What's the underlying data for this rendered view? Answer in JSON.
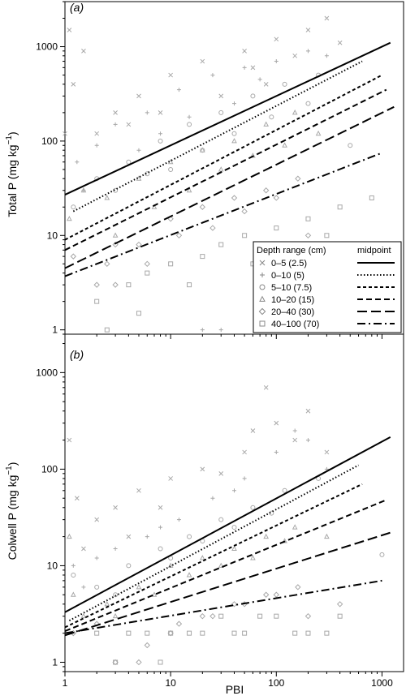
{
  "figure": {
    "xlabel": "PBI",
    "x_ticks": [
      "1",
      "10",
      "100",
      "1000"
    ],
    "y_ticks": [
      "1",
      "10",
      "100",
      "1000"
    ]
  },
  "legend": {
    "header_left": "Depth range (cm)",
    "header_right": "midpoint",
    "entries": [
      {
        "label": "0–5 (2.5)",
        "marker": "cross",
        "dash": "solid"
      },
      {
        "label": "0–10 (5)",
        "marker": "plus",
        "dash": "dotted"
      },
      {
        "label": "5–10 (7.5)",
        "marker": "circle",
        "dash": "short-dash"
      },
      {
        "label": "10–20 (15)",
        "marker": "triangle",
        "dash": "medium-dash"
      },
      {
        "label": "20–40 (30)",
        "marker": "diamond",
        "dash": "long-dash"
      },
      {
        "label": "40–100 (70)",
        "marker": "square",
        "dash": "dash-dot"
      }
    ]
  },
  "colors": {
    "points": "#a8a8a8",
    "lines": "#000000"
  },
  "chart_data": [
    {
      "type": "scatter",
      "panel_label": "(a)",
      "ylabel": "Total P (mg kg",
      "ylabel_superscript": "−1",
      "ylabel_close": ")",
      "xscale": "log",
      "yscale": "log",
      "xlim": [
        1,
        1600
      ],
      "ylim": [
        0.9,
        3000
      ],
      "legend_position": "lower-right",
      "points_color": "#a8a8a8",
      "series": [
        {
          "name": "0–5 (2.5)",
          "marker": "cross",
          "dash": "solid",
          "fit_x": [
            1,
            1200
          ],
          "fit_y": [
            27,
            1100
          ],
          "points": [
            [
              1.1,
              1500
            ],
            [
              1.2,
              400
            ],
            [
              2,
              120
            ],
            [
              3,
              200
            ],
            [
              5,
              300
            ],
            [
              10,
              500
            ],
            [
              20,
              700
            ],
            [
              50,
              900
            ],
            [
              100,
              1200
            ],
            [
              200,
              1500
            ],
            [
              300,
              2000
            ],
            [
              150,
              800
            ],
            [
              80,
              400
            ],
            [
              30,
              300
            ],
            [
              8,
              200
            ],
            [
              1,
              120
            ],
            [
              1.5,
              900
            ],
            [
              4,
              150
            ],
            [
              60,
              600
            ],
            [
              400,
              1100
            ]
          ]
        },
        {
          "name": "0–10 (5)",
          "marker": "plus",
          "dash": "dotted",
          "fit_x": [
            1.2,
            650
          ],
          "fit_y": [
            18,
            700
          ],
          "points": [
            [
              1.3,
              60
            ],
            [
              2,
              90
            ],
            [
              3,
              150
            ],
            [
              6,
              200
            ],
            [
              12,
              350
            ],
            [
              25,
              500
            ],
            [
              50,
              600
            ],
            [
              100,
              700
            ],
            [
              200,
              900
            ],
            [
              20,
              1.0
            ],
            [
              30,
              1.0
            ],
            [
              1.5,
              30
            ],
            [
              8,
              120
            ],
            [
              40,
              250
            ],
            [
              300,
              800
            ],
            [
              15,
              180
            ],
            [
              5,
              80
            ],
            [
              70,
              450
            ]
          ]
        },
        {
          "name": "5–10 (7.5)",
          "marker": "circle",
          "dash": "short-dash",
          "fit_x": [
            1,
            1000
          ],
          "fit_y": [
            9,
            500
          ],
          "points": [
            [
              1.2,
              20
            ],
            [
              2,
              40
            ],
            [
              4,
              60
            ],
            [
              8,
              100
            ],
            [
              15,
              150
            ],
            [
              30,
              200
            ],
            [
              60,
              300
            ],
            [
              120,
              400
            ],
            [
              250,
              500
            ],
            [
              10,
              50
            ],
            [
              20,
              80
            ],
            [
              3,
              30
            ],
            [
              40,
              120
            ],
            [
              90,
              180
            ],
            [
              200,
              250
            ],
            [
              500,
              90
            ],
            [
              6,
              45
            ]
          ]
        },
        {
          "name": "10–20 (15)",
          "marker": "triangle",
          "dash": "medium-dash",
          "fit_x": [
            1,
            1100
          ],
          "fit_y": [
            7,
            350
          ],
          "points": [
            [
              1.1,
              15
            ],
            [
              2.5,
              25
            ],
            [
              5,
              40
            ],
            [
              10,
              60
            ],
            [
              20,
              80
            ],
            [
              40,
              100
            ],
            [
              80,
              150
            ],
            [
              150,
              200
            ],
            [
              3,
              10
            ],
            [
              7,
              20
            ],
            [
              15,
              30
            ],
            [
              30,
              50
            ],
            [
              60,
              70
            ],
            [
              120,
              90
            ],
            [
              250,
              120
            ],
            [
              1.5,
              30
            ]
          ]
        },
        {
          "name": "20–40 (30)",
          "marker": "diamond",
          "dash": "long-dash",
          "fit_x": [
            1,
            1300
          ],
          "fit_y": [
            4.5,
            230
          ],
          "points": [
            [
              1.2,
              6
            ],
            [
              2,
              3
            ],
            [
              3,
              3
            ],
            [
              5,
              8
            ],
            [
              10,
              15
            ],
            [
              20,
              20
            ],
            [
              40,
              25
            ],
            [
              80,
              30
            ],
            [
              160,
              40
            ],
            [
              3,
              8
            ],
            [
              6,
              5
            ],
            [
              12,
              10
            ],
            [
              25,
              12
            ],
            [
              50,
              18
            ],
            [
              100,
              25
            ],
            [
              200,
              10
            ],
            [
              400,
              6
            ],
            [
              2.5,
              5
            ]
          ]
        },
        {
          "name": "40–100 (70)",
          "marker": "square",
          "dash": "dash-dot",
          "fit_x": [
            1,
            1000
          ],
          "fit_y": [
            3.7,
            75
          ],
          "points": [
            [
              2,
              2
            ],
            [
              4,
              3
            ],
            [
              6,
              4
            ],
            [
              10,
              5
            ],
            [
              20,
              6
            ],
            [
              30,
              8
            ],
            [
              50,
              10
            ],
            [
              100,
              12
            ],
            [
              200,
              15
            ],
            [
              400,
              20
            ],
            [
              800,
              25
            ],
            [
              2.5,
              1.0
            ],
            [
              5,
              1.5
            ],
            [
              15,
              3
            ],
            [
              60,
              5
            ],
            [
              150,
              6
            ],
            [
              300,
              10
            ],
            [
              600,
              8
            ]
          ]
        }
      ]
    },
    {
      "type": "scatter",
      "panel_label": "(b)",
      "ylabel": "Colwell P (mg kg",
      "ylabel_superscript": "−1",
      "ylabel_close": ")",
      "xscale": "log",
      "yscale": "log",
      "xlim": [
        1,
        1600
      ],
      "ylim": [
        0.8,
        2500
      ],
      "points_color": "#a8a8a8",
      "series": [
        {
          "name": "0–5 (2.5)",
          "marker": "cross",
          "dash": "solid",
          "fit_x": [
            1,
            1200
          ],
          "fit_y": [
            3.3,
            215
          ],
          "points": [
            [
              1.1,
              200
            ],
            [
              1.3,
              50
            ],
            [
              2,
              30
            ],
            [
              3,
              40
            ],
            [
              5,
              60
            ],
            [
              10,
              80
            ],
            [
              20,
              100
            ],
            [
              50,
              150
            ],
            [
              100,
              300
            ],
            [
              200,
              400
            ],
            [
              80,
              700
            ],
            [
              150,
              200
            ],
            [
              30,
              90
            ],
            [
              8,
              40
            ],
            [
              4,
              20
            ],
            [
              1.5,
              15
            ],
            [
              60,
              250
            ],
            [
              300,
              150
            ]
          ]
        },
        {
          "name": "0–10 (5)",
          "marker": "plus",
          "dash": "dotted",
          "fit_x": [
            1.1,
            600
          ],
          "fit_y": [
            2.7,
            110
          ],
          "points": [
            [
              1.2,
              10
            ],
            [
              2,
              12
            ],
            [
              3,
              15
            ],
            [
              6,
              20
            ],
            [
              12,
              30
            ],
            [
              25,
              50
            ],
            [
              50,
              80
            ],
            [
              100,
              150
            ],
            [
              200,
              200
            ],
            [
              300,
              100
            ],
            [
              1.5,
              6
            ],
            [
              8,
              25
            ],
            [
              40,
              60
            ],
            [
              150,
              250
            ]
          ]
        },
        {
          "name": "5–10 (7.5)",
          "marker": "circle",
          "dash": "short-dash",
          "fit_x": [
            1,
            650
          ],
          "fit_y": [
            2.3,
            70
          ],
          "points": [
            [
              1.2,
              8
            ],
            [
              2,
              6
            ],
            [
              4,
              10
            ],
            [
              8,
              15
            ],
            [
              15,
              20
            ],
            [
              30,
              30
            ],
            [
              60,
              40
            ],
            [
              120,
              60
            ],
            [
              250,
              80
            ],
            [
              1000,
              13
            ],
            [
              10,
              12
            ],
            [
              20,
              18
            ],
            [
              3,
              5
            ],
            [
              40,
              25
            ],
            [
              90,
              35
            ]
          ]
        },
        {
          "name": "10–20 (15)",
          "marker": "triangle",
          "dash": "medium-dash",
          "fit_x": [
            1,
            1100
          ],
          "fit_y": [
            2.1,
            48
          ],
          "points": [
            [
              1.1,
              20
            ],
            [
              1.2,
              5
            ],
            [
              2.5,
              4
            ],
            [
              5,
              6
            ],
            [
              10,
              10
            ],
            [
              20,
              12
            ],
            [
              40,
              15
            ],
            [
              80,
              20
            ],
            [
              150,
              25
            ],
            [
              300,
              20
            ],
            [
              3,
              3
            ],
            [
              7,
              5
            ],
            [
              15,
              8
            ],
            [
              30,
              10
            ],
            [
              60,
              12
            ],
            [
              120,
              18
            ],
            [
              1.5,
              3
            ]
          ]
        },
        {
          "name": "20–40 (30)",
          "marker": "diamond",
          "dash": "long-dash",
          "fit_x": [
            1,
            1200
          ],
          "fit_y": [
            1.9,
            22
          ],
          "points": [
            [
              1.2,
              2
            ],
            [
              2,
              2.5
            ],
            [
              3,
              1.0
            ],
            [
              5,
              1.0
            ],
            [
              10,
              2
            ],
            [
              20,
              3
            ],
            [
              40,
              4
            ],
            [
              80,
              5
            ],
            [
              160,
              6
            ],
            [
              400,
              4
            ],
            [
              6,
              1.5
            ],
            [
              12,
              2.5
            ],
            [
              25,
              3
            ],
            [
              50,
              4
            ],
            [
              100,
              5
            ],
            [
              200,
              3
            ]
          ]
        },
        {
          "name": "40–100 (70)",
          "marker": "square",
          "dash": "dash-dot",
          "fit_x": [
            1,
            1000
          ],
          "fit_y": [
            2.0,
            7
          ],
          "points": [
            [
              2,
              2
            ],
            [
              4,
              2
            ],
            [
              6,
              2
            ],
            [
              10,
              2
            ],
            [
              20,
              2
            ],
            [
              30,
              3
            ],
            [
              50,
              2
            ],
            [
              100,
              3
            ],
            [
              200,
              2
            ],
            [
              400,
              3
            ],
            [
              3,
              1.0
            ],
            [
              8,
              1.0
            ],
            [
              15,
              2
            ],
            [
              40,
              2
            ],
            [
              70,
              3
            ],
            [
              150,
              2
            ],
            [
              300,
              2
            ]
          ]
        }
      ]
    }
  ]
}
